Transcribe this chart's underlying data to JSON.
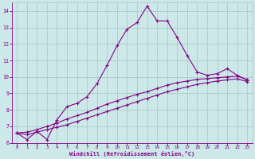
{
  "bg_color": "#cce8e8",
  "grid_color": "#aacccc",
  "line_color": "#880088",
  "xlabel": "Windchill (Refroidissement éolien,°C)",
  "xlabel_color": "#880088",
  "tick_color": "#880088",
  "xlim": [
    -0.5,
    23.5
  ],
  "ylim": [
    6,
    14.5
  ],
  "yticks": [
    6,
    7,
    8,
    9,
    10,
    11,
    12,
    13,
    14
  ],
  "xticks": [
    0,
    1,
    2,
    3,
    4,
    5,
    6,
    7,
    8,
    9,
    10,
    11,
    12,
    13,
    14,
    15,
    16,
    17,
    18,
    19,
    20,
    21,
    22,
    23
  ],
  "curve1_x": [
    0,
    1,
    2,
    3,
    4,
    5,
    6,
    7,
    8,
    9,
    10,
    11,
    12,
    13,
    14,
    15,
    16,
    17,
    18,
    19,
    20,
    21,
    22,
    23
  ],
  "curve1_y": [
    6.6,
    6.2,
    6.7,
    6.2,
    7.4,
    8.2,
    8.4,
    8.8,
    9.6,
    10.7,
    11.9,
    12.9,
    13.3,
    14.3,
    13.4,
    13.4,
    12.4,
    11.3,
    10.3,
    10.1,
    10.2,
    10.5,
    10.1,
    9.8
  ],
  "curve2_x": [
    0,
    1,
    2,
    3,
    4,
    5,
    6,
    7,
    8,
    9,
    10,
    11,
    12,
    13,
    14,
    15,
    16,
    17,
    18,
    19,
    20,
    21,
    22,
    23
  ],
  "curve2_y": [
    6.6,
    6.65,
    6.8,
    7.0,
    7.2,
    7.45,
    7.65,
    7.85,
    8.1,
    8.35,
    8.55,
    8.75,
    8.95,
    9.1,
    9.3,
    9.5,
    9.65,
    9.75,
    9.85,
    9.9,
    9.95,
    10.0,
    10.05,
    9.85
  ],
  "curve3_x": [
    0,
    1,
    2,
    3,
    4,
    5,
    6,
    7,
    8,
    9,
    10,
    11,
    12,
    13,
    14,
    15,
    16,
    17,
    18,
    19,
    20,
    21,
    22,
    23
  ],
  "curve3_y": [
    6.6,
    6.5,
    6.65,
    6.8,
    6.95,
    7.1,
    7.3,
    7.5,
    7.7,
    7.9,
    8.1,
    8.3,
    8.5,
    8.7,
    8.9,
    9.1,
    9.25,
    9.4,
    9.55,
    9.65,
    9.75,
    9.82,
    9.88,
    9.72
  ]
}
